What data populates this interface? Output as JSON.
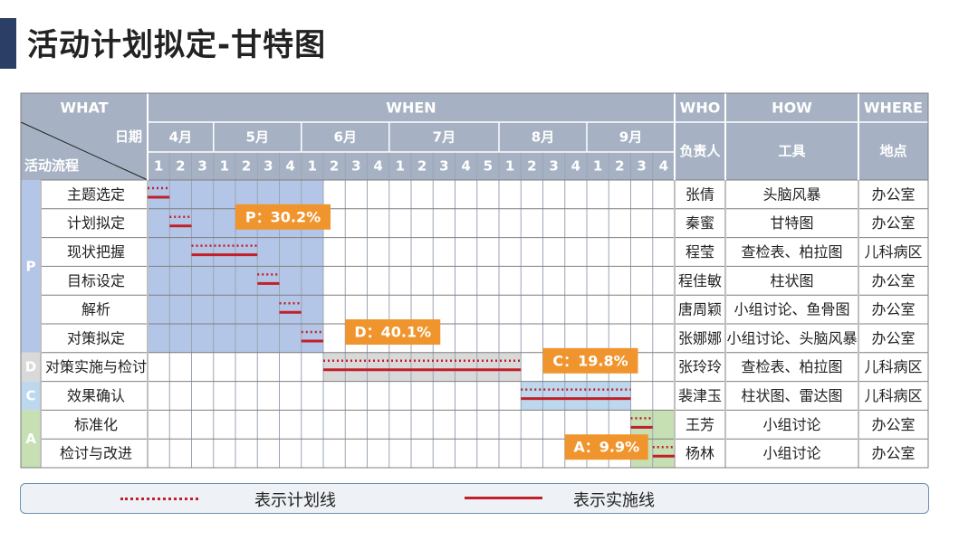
{
  "page_title": "活动计划拟定-甘特图",
  "header": {
    "what": "WHAT",
    "when": "WHEN",
    "who": "WHO",
    "how": "HOW",
    "where": "WHERE"
  },
  "subheader": {
    "date": "日期",
    "process": "活动流程",
    "person": "负责人",
    "tool": "工具",
    "place": "地点"
  },
  "months": [
    {
      "label": "4月",
      "weeks": [
        "1",
        "2",
        "3"
      ]
    },
    {
      "label": "5月",
      "weeks": [
        "1",
        "2",
        "3",
        "4"
      ]
    },
    {
      "label": "6月",
      "weeks": [
        "1",
        "2",
        "3",
        "4"
      ]
    },
    {
      "label": "7月",
      "weeks": [
        "1",
        "2",
        "3",
        "4",
        "5"
      ]
    },
    {
      "label": "8月",
      "weeks": [
        "1",
        "2",
        "3",
        "4"
      ]
    },
    {
      "label": "9月",
      "weeks": [
        "1",
        "2",
        "3",
        "4"
      ]
    }
  ],
  "phases": [
    {
      "label": "P",
      "color": "#b4c6e7",
      "start_row": 0,
      "rows": 6
    },
    {
      "label": "D",
      "color": "#d9d9d9",
      "start_row": 6,
      "rows": 1
    },
    {
      "label": "C",
      "color": "#bdd7ee",
      "start_row": 7,
      "rows": 1
    },
    {
      "label": "A",
      "color": "#c6e0b4",
      "start_row": 8,
      "rows": 2
    }
  ],
  "tasks": [
    {
      "name": "主题选定",
      "person": "张倩",
      "tool": "头脑风暴",
      "place": "办公室",
      "plan": [
        0,
        1
      ],
      "actual": [
        0,
        1
      ]
    },
    {
      "name": "计划拟定",
      "person": "秦蜜",
      "tool": "甘特图",
      "place": "办公室",
      "plan": [
        1,
        2
      ],
      "actual": [
        1,
        2
      ]
    },
    {
      "name": "现状把握",
      "person": "程莹",
      "tool": "查检表、柏拉图",
      "place": "儿科病区",
      "plan": [
        2,
        5
      ],
      "actual": [
        2,
        5
      ]
    },
    {
      "name": "目标设定",
      "person": "程佳敏",
      "tool": "柱状图",
      "place": "办公室",
      "plan": [
        5,
        6
      ],
      "actual": [
        5,
        6
      ]
    },
    {
      "name": "解析",
      "person": "唐周颖",
      "tool": "小组讨论、鱼骨图",
      "place": "办公室",
      "plan": [
        6,
        7
      ],
      "actual": [
        6,
        7
      ]
    },
    {
      "name": "对策拟定",
      "person": "张娜娜",
      "tool": "小组讨论、头脑风暴",
      "place": "办公室",
      "plan": [
        7,
        8
      ],
      "actual": [
        7,
        8
      ]
    },
    {
      "name": "对策实施与检讨",
      "person": "张玲玲",
      "tool": "查检表、柏拉图",
      "place": "儿科病区",
      "plan": [
        8,
        17
      ],
      "actual": [
        8,
        17
      ]
    },
    {
      "name": "效果确认",
      "person": "裴津玉",
      "tool": "柱状图、雷达图",
      "place": "儿科病区",
      "plan": [
        17,
        22
      ],
      "actual": [
        17,
        22
      ]
    },
    {
      "name": "标准化",
      "person": "王芳",
      "tool": "小组讨论",
      "place": "办公室",
      "plan": [
        22,
        23
      ],
      "actual": [
        22,
        23
      ]
    },
    {
      "name": "检讨与改进",
      "person": "杨林",
      "tool": "小组讨论",
      "place": "办公室",
      "plan": [
        23,
        24
      ],
      "actual": [
        23,
        24
      ]
    }
  ],
  "phase_shading": [
    {
      "phase": "P",
      "col_start": 0,
      "col_end": 8,
      "row_start": 0,
      "row_end": 6,
      "color": "#b4c6e7"
    },
    {
      "phase": "D",
      "col_start": 8,
      "col_end": 17,
      "row_start": 6,
      "row_end": 7,
      "color": "#d9d9d9"
    },
    {
      "phase": "C",
      "col_start": 17,
      "col_end": 22,
      "row_start": 7,
      "row_end": 8,
      "color": "#bdd7ee"
    },
    {
      "phase": "A",
      "col_start": 22,
      "col_end": 24,
      "row_start": 8,
      "row_end": 10,
      "color": "#c6e0b4"
    }
  ],
  "callouts": [
    {
      "text": "P：30.2%",
      "anchor_row": 1,
      "anchor_col": 4
    },
    {
      "text": "D：40.1%",
      "anchor_row": 5,
      "anchor_col": 9
    },
    {
      "text": "C：19.8%",
      "anchor_row": 6,
      "anchor_col": 18
    },
    {
      "text": "A：9.9%",
      "anchor_row": 9,
      "anchor_col": 19
    }
  ],
  "legend": {
    "plan_label": "表示计划线",
    "actual_label": "表示实施线"
  },
  "colors": {
    "header_bg": "#a6b2c3",
    "accent": "#f0952e",
    "line": "#c0202a",
    "border": "#7f7f7f"
  }
}
